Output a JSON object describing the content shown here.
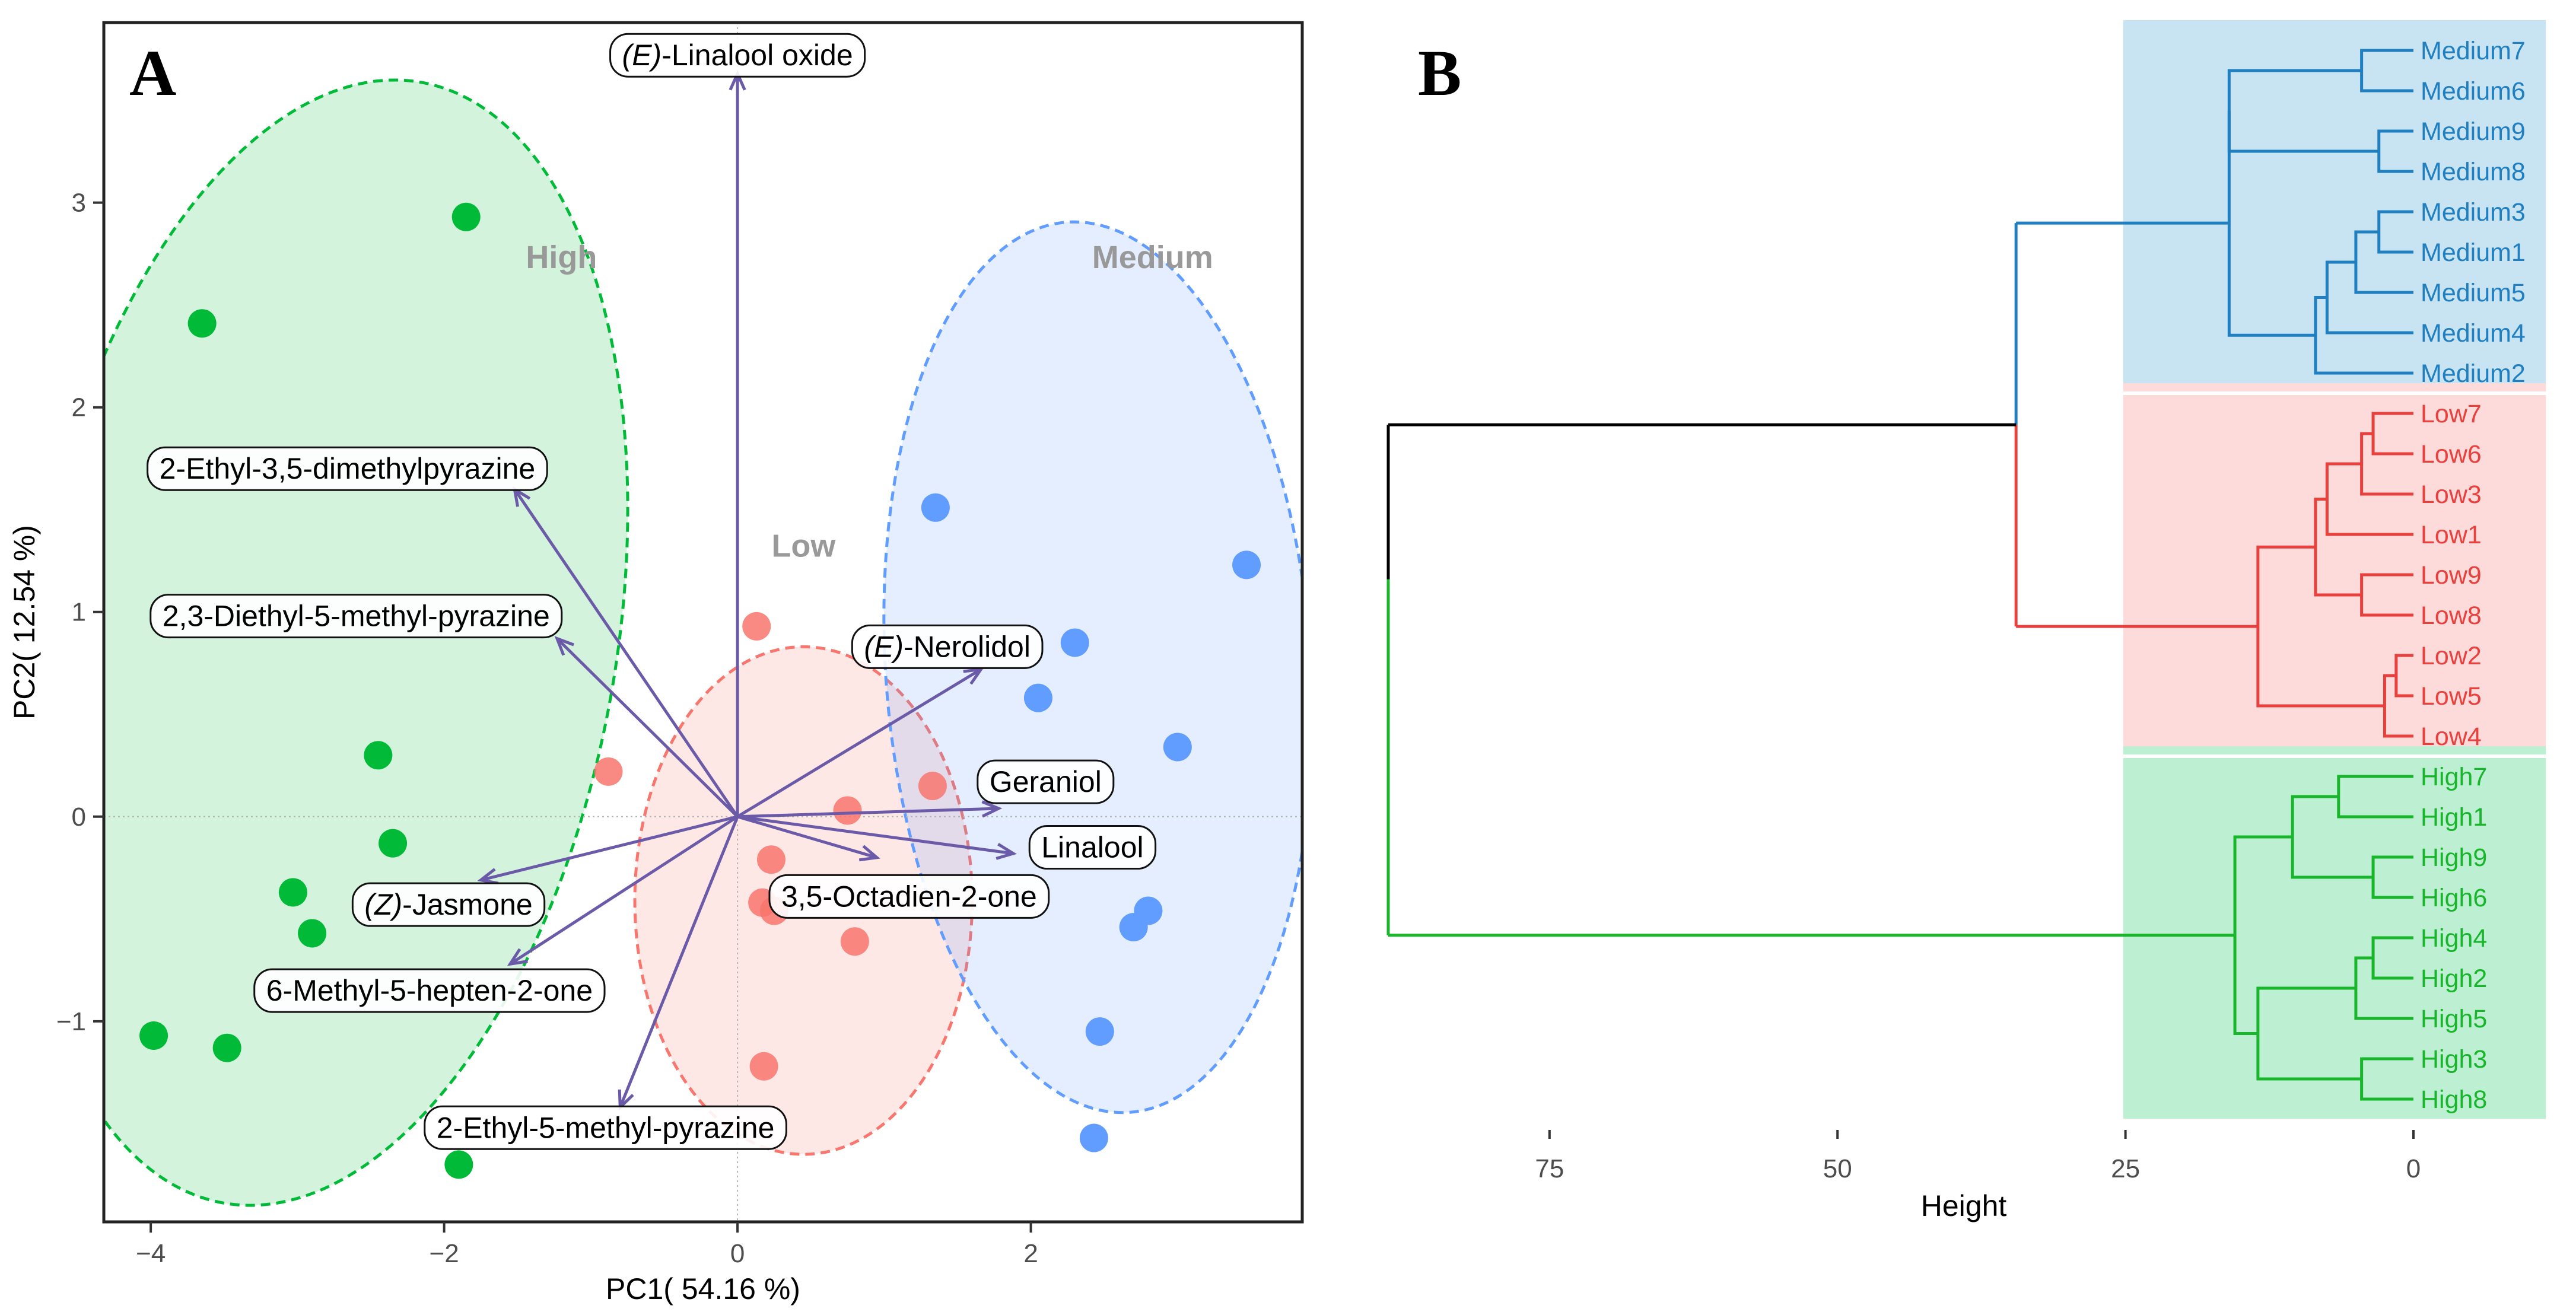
{
  "colors": {
    "high": "#00BA38",
    "low": "#F8766D",
    "medium": "#619CFF",
    "arrow": "#6A5AA8",
    "label_gray": "#999999",
    "dendro_medium": "#1F7FC0",
    "dendro_low": "#E8413D",
    "dendro_high": "#19B52B",
    "dendro_root": "#000000",
    "band_medium": "#C8E3F1",
    "band_low": "#FDDBDB",
    "band_high": "#BDF0D3"
  },
  "chart_data": [
    {
      "type": "scatter",
      "subtype": "pca-biplot",
      "panel_label": "A",
      "xlabel": "PC1( 54.16 %)",
      "ylabel": "PC2( 12.54 %)",
      "xlim": [
        -4.32,
        3.85
      ],
      "ylim": [
        -1.98,
        3.88
      ],
      "xticks": [
        -4,
        -2,
        0,
        2
      ],
      "yticks": [
        -1,
        0,
        1,
        2,
        3
      ],
      "reference_lines": {
        "x": 0,
        "y": 0
      },
      "groups": [
        {
          "name": "High",
          "color_key": "high",
          "label": {
            "text": "High",
            "x": -1.2,
            "y": 2.68
          },
          "ellipse": {
            "cx": -2.83,
            "cy": 0.85,
            "rx": 2.0,
            "ry": 2.78,
            "angle": 10
          },
          "points": [
            {
              "x": -1.85,
              "y": 2.93
            },
            {
              "x": -3.65,
              "y": 2.41
            },
            {
              "x": -2.45,
              "y": 0.3
            },
            {
              "x": -2.35,
              "y": -0.13
            },
            {
              "x": -3.03,
              "y": -0.37
            },
            {
              "x": -2.9,
              "y": -0.57
            },
            {
              "x": -3.98,
              "y": -1.07
            },
            {
              "x": -3.48,
              "y": -1.13
            },
            {
              "x": -1.9,
              "y": -1.7
            }
          ]
        },
        {
          "name": "Low",
          "color_key": "low",
          "label": {
            "text": "Low",
            "x": 0.45,
            "y": 1.27
          },
          "ellipse": {
            "cx": 0.45,
            "cy": -0.41,
            "rx": 1.15,
            "ry": 1.24,
            "angle": 0
          },
          "points": [
            {
              "x": 0.13,
              "y": 0.93
            },
            {
              "x": -0.88,
              "y": 0.22
            },
            {
              "x": 1.33,
              "y": 0.15
            },
            {
              "x": 0.75,
              "y": 0.03
            },
            {
              "x": 0.23,
              "y": -0.21
            },
            {
              "x": 0.17,
              "y": -0.42
            },
            {
              "x": 0.25,
              "y": -0.46
            },
            {
              "x": 0.8,
              "y": -0.61
            },
            {
              "x": 0.18,
              "y": -1.22
            }
          ]
        },
        {
          "name": "Medium",
          "color_key": "medium",
          "label": {
            "text": "Medium",
            "x": 2.83,
            "y": 2.68
          },
          "ellipse": {
            "cx": 2.46,
            "cy": 0.73,
            "rx": 1.45,
            "ry": 2.18,
            "angle": -4
          },
          "points": [
            {
              "x": 1.35,
              "y": 1.51
            },
            {
              "x": 3.47,
              "y": 1.23
            },
            {
              "x": 2.3,
              "y": 0.85
            },
            {
              "x": 2.05,
              "y": 0.58
            },
            {
              "x": 3.0,
              "y": 0.34
            },
            {
              "x": 2.8,
              "y": -0.46
            },
            {
              "x": 2.7,
              "y": -0.54
            },
            {
              "x": 2.47,
              "y": -1.05
            },
            {
              "x": 2.43,
              "y": -1.57
            }
          ]
        }
      ],
      "loadings": [
        {
          "name": "(E)-Linalool oxide",
          "prefix": "(E)",
          "suffix": "-Linalool oxide",
          "x": 0.0,
          "y": 3.63,
          "label_x": 0.0,
          "label_y": 3.72
        },
        {
          "name": "2-Ethyl-3,5-dimethylpyrazine",
          "prefix": "",
          "suffix": "2-Ethyl-3,5-dimethylpyrazine",
          "x": -1.52,
          "y": 1.6,
          "label_x": -2.66,
          "label_y": 1.7
        },
        {
          "name": "2,3-Diethyl-5-methyl-pyrazine",
          "prefix": "",
          "suffix": "2,3-Diethyl-5-methyl-pyrazine",
          "x": -1.23,
          "y": 0.87,
          "label_x": -2.6,
          "label_y": 0.98
        },
        {
          "name": "(E)-Nerolidol",
          "prefix": "(E)",
          "suffix": "-Nerolidol",
          "x": 1.66,
          "y": 0.72,
          "label_x": 1.43,
          "label_y": 0.83
        },
        {
          "name": "Geraniol",
          "prefix": "",
          "suffix": "Geraniol",
          "x": 1.78,
          "y": 0.04,
          "label_x": 2.1,
          "label_y": 0.17
        },
        {
          "name": "Linalool",
          "prefix": "",
          "suffix": "Linalool",
          "x": 1.88,
          "y": -0.18,
          "label_x": 2.42,
          "label_y": -0.15
        },
        {
          "name": "3,5-Octadien-2-one",
          "prefix": "",
          "suffix": "3,5-Octadien-2-one",
          "x": 0.95,
          "y": -0.2,
          "label_x": 1.17,
          "label_y": -0.39
        },
        {
          "name": "(Z)-Jasmone",
          "prefix": "(Z)",
          "suffix": "-Jasmone",
          "x": -1.75,
          "y": -0.31,
          "label_x": -1.97,
          "label_y": -0.43
        },
        {
          "name": "6-Methyl-5-hepten-2-one",
          "prefix": "",
          "suffix": "6-Methyl-5-hepten-2-one",
          "x": -1.55,
          "y": -0.72,
          "label_x": -2.1,
          "label_y": -0.85
        },
        {
          "name": "2-Ethyl-5-methyl-pyrazine",
          "prefix": "",
          "suffix": "2-Ethyl-5-methyl-pyrazine",
          "x": -0.8,
          "y": -1.42,
          "label_x": -0.9,
          "label_y": -1.52
        }
      ]
    },
    {
      "type": "dendrogram",
      "panel_label": "B",
      "xlabel": "Height",
      "xlim": [
        89,
        -11
      ],
      "xticks": [
        75,
        50,
        25,
        0
      ],
      "leaves": [
        "Medium7",
        "Medium6",
        "Medium9",
        "Medium8",
        "Medium3",
        "Medium1",
        "Medium5",
        "Medium4",
        "Medium2",
        "Low7",
        "Low6",
        "Low3",
        "Low1",
        "Low9",
        "Low8",
        "Low2",
        "Low5",
        "Low4",
        "High7",
        "High1",
        "High9",
        "High6",
        "High4",
        "High2",
        "High5",
        "High3",
        "High8"
      ],
      "clusters": [
        {
          "name": "Medium",
          "color_key": "dendro_medium",
          "band_key": "band_medium",
          "first_leaf": 0,
          "last_leaf": 8
        },
        {
          "name": "Low",
          "color_key": "dendro_low",
          "band_key": "band_low",
          "first_leaf": 9,
          "last_leaf": 17
        },
        {
          "name": "High",
          "color_key": "dendro_high",
          "band_key": "band_high",
          "first_leaf": 18,
          "last_leaf": 26
        }
      ],
      "merges": [
        {
          "id": "m76",
          "h": 4.5,
          "a": "Medium7",
          "b": "Medium6",
          "g": "medium"
        },
        {
          "id": "m98",
          "h": 3.0,
          "a": "Medium9",
          "b": "Medium8",
          "g": "medium"
        },
        {
          "id": "mA",
          "h": 16.0,
          "a": "m76",
          "b": "m98",
          "g": "medium"
        },
        {
          "id": "m31",
          "h": 3.0,
          "a": "Medium3",
          "b": "Medium1",
          "g": "medium"
        },
        {
          "id": "m315",
          "h": 5.0,
          "a": "m31",
          "b": "Medium5",
          "g": "medium"
        },
        {
          "id": "m3154",
          "h": 7.5,
          "a": "m315",
          "b": "Medium4",
          "g": "medium"
        },
        {
          "id": "m31542",
          "h": 8.5,
          "a": "m3154",
          "b": "Medium2",
          "g": "medium"
        },
        {
          "id": "mMed",
          "h": 16.0,
          "a": "mA",
          "b": "m31542",
          "g": "medium"
        },
        {
          "id": "l76",
          "h": 3.5,
          "a": "Low7",
          "b": "Low6",
          "g": "low"
        },
        {
          "id": "l763",
          "h": 4.5,
          "a": "l76",
          "b": "Low3",
          "g": "low"
        },
        {
          "id": "l7631",
          "h": 7.5,
          "a": "l763",
          "b": "Low1",
          "g": "low"
        },
        {
          "id": "l98",
          "h": 4.5,
          "a": "Low9",
          "b": "Low8",
          "g": "low"
        },
        {
          "id": "lA",
          "h": 8.5,
          "a": "l7631",
          "b": "l98",
          "g": "low"
        },
        {
          "id": "l25",
          "h": 1.5,
          "a": "Low2",
          "b": "Low5",
          "g": "low"
        },
        {
          "id": "l254",
          "h": 2.5,
          "a": "l25",
          "b": "Low4",
          "g": "low"
        },
        {
          "id": "lLow",
          "h": 13.5,
          "a": "lA",
          "b": "l254",
          "g": "low"
        },
        {
          "id": "h71",
          "h": 6.5,
          "a": "High7",
          "b": "High1",
          "g": "high"
        },
        {
          "id": "h96",
          "h": 3.5,
          "a": "High9",
          "b": "High6",
          "g": "high"
        },
        {
          "id": "hA",
          "h": 10.5,
          "a": "h71",
          "b": "h96",
          "g": "high"
        },
        {
          "id": "h42",
          "h": 3.5,
          "a": "High4",
          "b": "High2",
          "g": "high"
        },
        {
          "id": "h425",
          "h": 5.0,
          "a": "h42",
          "b": "High5",
          "g": "high"
        },
        {
          "id": "h38",
          "h": 4.5,
          "a": "High3",
          "b": "High8",
          "g": "high"
        },
        {
          "id": "hB",
          "h": 13.5,
          "a": "h425",
          "b": "h38",
          "g": "high"
        },
        {
          "id": "hHigh",
          "h": 15.5,
          "a": "hA",
          "b": "hB",
          "g": "high"
        },
        {
          "id": "ML",
          "h": 34.5,
          "a": "mMed",
          "b": "lLow",
          "g": "mixed"
        },
        {
          "id": "root",
          "h": 89.0,
          "a": "ML",
          "b": "hHigh",
          "g": "root"
        }
      ]
    }
  ]
}
